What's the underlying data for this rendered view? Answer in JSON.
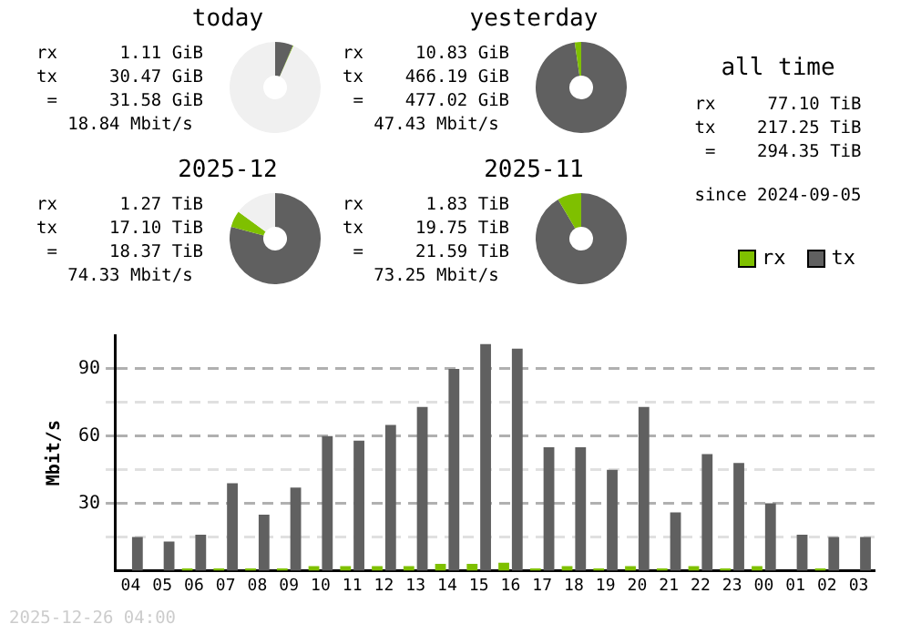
{
  "chart_data": [
    {
      "type": "donut",
      "title": "today",
      "categories": [
        null,
        null,
        null
      ],
      "values": [
        6.39,
        0.23,
        93.38
      ],
      "colors": [
        "#606060",
        "#7fc000",
        "#f0f0f0"
      ],
      "legend": false,
      "annotations": [
        "rx      1.11 GiB",
        "tx     30.47 GiB",
        " =     31.58 GiB",
        "   18.84 Mbit/s"
      ]
    },
    {
      "type": "donut",
      "title": "yesterday",
      "categories": [
        null,
        null
      ],
      "values": [
        97.73,
        2.27
      ],
      "colors": [
        "#606060",
        "#7fc000"
      ],
      "legend": false,
      "annotations": [
        "rx     10.83 GiB",
        "tx    466.19 GiB",
        " =    477.02 GiB",
        "   47.43 Mbit/s"
      ]
    },
    {
      "type": "other",
      "title": "all time",
      "annotations": [
        "rx     77.10 TiB",
        "tx    217.25 TiB",
        " =    294.35 TiB",
        "since 2024-09-05"
      ]
    },
    {
      "type": "donut",
      "title": "2025-12",
      "categories": [
        null,
        null,
        null
      ],
      "values": [
        79.2,
        5.88,
        14.92
      ],
      "colors": [
        "#606060",
        "#7fc000",
        "#f0f0f0"
      ],
      "legend": false,
      "annotations": [
        "rx      1.27 TiB",
        "tx     17.10 TiB",
        " =     18.37 TiB",
        "   74.33 Mbit/s"
      ]
    },
    {
      "type": "donut",
      "title": "2025-11",
      "categories": [
        null,
        null
      ],
      "values": [
        91.52,
        8.48
      ],
      "colors": [
        "#606060",
        "#7fc000"
      ],
      "legend": false,
      "annotations": [
        "rx      1.83 TiB",
        "tx     19.75 TiB",
        " =     21.59 TiB",
        "   73.25 Mbit/s"
      ]
    },
    {
      "type": "bar",
      "ylabel": "Mbit/s",
      "categories": [
        "04",
        "05",
        "06",
        "07",
        "08",
        "09",
        "10",
        "11",
        "12",
        "13",
        "14",
        "15",
        "16",
        "17",
        "18",
        "19",
        "20",
        "21",
        "22",
        "23",
        "00",
        "01",
        "02",
        "03"
      ],
      "series": [
        {
          "name": "rx",
          "color": "#7fc000",
          "values": [
            0,
            0,
            1,
            1,
            1,
            1,
            2,
            2,
            2,
            2,
            3,
            3,
            3.5,
            1,
            2,
            1,
            2,
            1,
            2,
            1,
            2,
            0,
            1,
            0
          ]
        },
        {
          "name": "tx",
          "color": "#606060",
          "values": [
            15,
            13,
            16,
            39,
            25,
            37,
            60,
            58,
            65,
            73,
            90,
            101,
            99,
            55,
            55,
            45,
            73,
            26,
            52,
            48,
            30,
            16,
            15,
            15
          ]
        }
      ],
      "ylim": [
        0,
        105
      ],
      "yticks": [
        {
          "value": 0,
          "label": null
        },
        {
          "value": 15,
          "label": null
        },
        30,
        {
          "value": 45,
          "label": null
        },
        60,
        {
          "value": 75,
          "label": null
        },
        90
      ],
      "grid": "y",
      "legend": "top right",
      "annotations": [
        "2025-12-26 04:00"
      ]
    }
  ]
}
